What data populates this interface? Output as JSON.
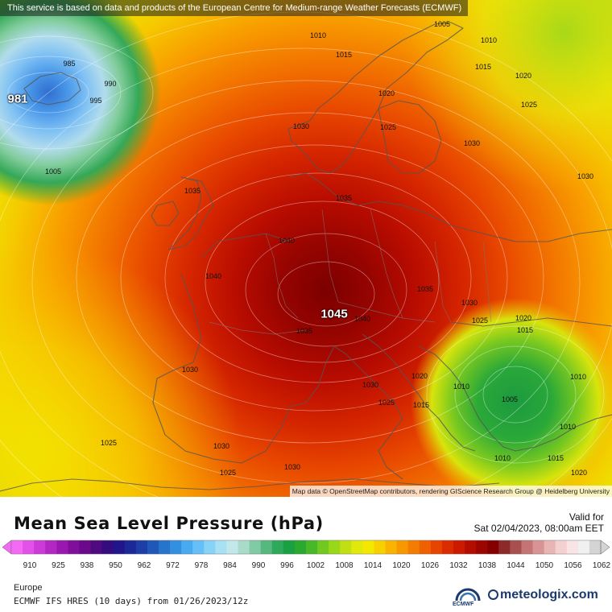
{
  "disclaimer": "This service is based on data and products of the European Centre for Medium-range Weather Forecasts (ECMWF)",
  "attribution": "Map data © OpenStreetMap contributors, rendering GIScience Research Group @ Heidelberg University",
  "map_labels": {
    "low_center": "981",
    "high_center": "1045",
    "iso_985": "985",
    "iso_990": "990",
    "iso_995": "995",
    "iso_1005_w": "1005",
    "iso_1010_n": "1010",
    "iso_1015_n": "1015",
    "iso_1005_ne": "1005",
    "iso_1010_ne": "1010",
    "iso_1015_ne": "1015",
    "iso_1020_ne": "1020",
    "iso_1025_ne": "1025",
    "iso_1020_nc": "1020",
    "iso_1025_nc": "1025",
    "iso_1030_nor": "1030",
    "iso_1030_e": "1030",
    "iso_1030_far_e": "1030",
    "iso_1035_uk": "1035",
    "iso_1035_dk": "1035",
    "iso_1040_n": "1040",
    "iso_1040_w": "1040",
    "iso_1040_e": "1040",
    "iso_1035_alps": "1035",
    "iso_1035_c": "1035",
    "iso_1030_rom": "1030",
    "iso_1020_b": "1020",
    "iso_1015_b": "1015",
    "iso_1030_sp": "1030",
    "iso_1030_it": "1030",
    "iso_1025_it": "1025",
    "iso_1020_it": "1020",
    "iso_1015_it": "1015",
    "iso_1010_gr": "1010",
    "iso_1005_gr": "1005",
    "iso_1010_tr": "1010",
    "iso_1010_tr2": "1010",
    "iso_1010_cr": "1010",
    "iso_1015_tr": "1015",
    "iso_1020_se": "1020",
    "iso_1025_atl": "1025",
    "iso_1030_sp2": "1030",
    "iso_1025_afr": "1025",
    "iso_1030_afr": "1030"
  },
  "legend": {
    "title": "Mean Sea Level Pressure (hPa)",
    "valid_label": "Valid for",
    "valid_date": "Sat 02/04/2023, 08:00am EET",
    "ticks": [
      "910",
      "925",
      "938",
      "950",
      "962",
      "972",
      "978",
      "984",
      "990",
      "996",
      "1002",
      "1008",
      "1014",
      "1020",
      "1026",
      "1032",
      "1038",
      "1044",
      "1050",
      "1056",
      "1062"
    ],
    "colors": [
      "#f46af4",
      "#e252e8",
      "#cc3ad8",
      "#b327c4",
      "#9a18b0",
      "#80109c",
      "#6a0a8a",
      "#4f0a80",
      "#340c7e",
      "#22148a",
      "#1b2896",
      "#1d3ea6",
      "#1f58b8",
      "#2674cc",
      "#3390e0",
      "#48aaf0",
      "#66c0f8",
      "#88d2f8",
      "#a8e0f4",
      "#c2e8ec",
      "#a8dcc8",
      "#80caa4",
      "#56b87e",
      "#2ea85a",
      "#1aa040",
      "#2aa830",
      "#48b828",
      "#70c820",
      "#98d818",
      "#c0e014",
      "#e0e80c",
      "#f4e800",
      "#f8d000",
      "#f8b400",
      "#f89800",
      "#f47c00",
      "#ee6000",
      "#e64400",
      "#da2c00",
      "#cc1a00",
      "#b40c00",
      "#9c0600",
      "#840000",
      "#8c2a2a",
      "#a85050",
      "#c47474",
      "#d89494",
      "#e8b4b4",
      "#f4d0d0",
      "#f8e4e4",
      "#f0f0f0",
      "#d4d4d4"
    ],
    "region": "Europe",
    "model": "ECMWF IFS HRES (10 days) from 01/26/2023/12z",
    "ecmwf": "ECMWF",
    "brand": "meteologix.com"
  }
}
